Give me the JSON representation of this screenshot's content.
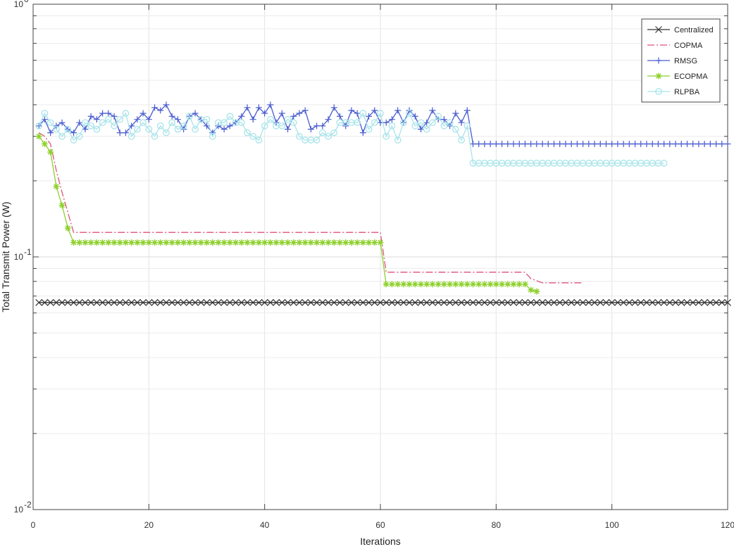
{
  "chart_data": {
    "type": "line",
    "title": "",
    "xlabel": "Iterations",
    "ylabel": "Total Transmit Power (W)",
    "xlim": [
      0,
      120
    ],
    "ylim": [
      0.01,
      1
    ],
    "yscale": "log",
    "grid": true,
    "legend_position": "top-right",
    "x_ticks": [
      "0",
      "20",
      "40",
      "60",
      "80",
      "100",
      "120"
    ],
    "y_ticks": [
      {
        "value": 1,
        "base": "10",
        "exp": "0"
      },
      {
        "value": 0.1,
        "base": "10",
        "exp": "-1"
      },
      {
        "value": 0.01,
        "base": "10",
        "exp": "-2"
      }
    ],
    "series": [
      {
        "name": "Centralized",
        "color": "#333333",
        "dash": "",
        "marker": "x",
        "x_start": 1,
        "x_end": 120,
        "values": [
          0.066
        ]
      },
      {
        "name": "COPMA",
        "color": "#e0507a",
        "dash": "10,3,2,3",
        "marker": "none",
        "points": [
          [
            1,
            0.31
          ],
          [
            2,
            0.3
          ],
          [
            3,
            0.28
          ],
          [
            4,
            0.22
          ],
          [
            5,
            0.18
          ],
          [
            6,
            0.15
          ],
          [
            7,
            0.125
          ],
          [
            60,
            0.125
          ],
          [
            61,
            0.087
          ],
          [
            85,
            0.087
          ],
          [
            86,
            0.082
          ],
          [
            88,
            0.079
          ],
          [
            95,
            0.079
          ]
        ]
      },
      {
        "name": "RMSG",
        "color": "#4a5cd0",
        "dash": "",
        "marker": "+",
        "points": [
          [
            1,
            0.33
          ],
          [
            2,
            0.35
          ],
          [
            3,
            0.31
          ],
          [
            4,
            0.33
          ],
          [
            5,
            0.34
          ],
          [
            6,
            0.32
          ],
          [
            7,
            0.31
          ],
          [
            8,
            0.34
          ],
          [
            9,
            0.32
          ],
          [
            10,
            0.36
          ],
          [
            11,
            0.35
          ],
          [
            12,
            0.37
          ],
          [
            13,
            0.37
          ],
          [
            14,
            0.36
          ],
          [
            15,
            0.31
          ],
          [
            16,
            0.31
          ],
          [
            17,
            0.33
          ],
          [
            18,
            0.35
          ],
          [
            19,
            0.37
          ],
          [
            20,
            0.35
          ],
          [
            21,
            0.39
          ],
          [
            22,
            0.38
          ],
          [
            23,
            0.4
          ],
          [
            24,
            0.36
          ],
          [
            25,
            0.35
          ],
          [
            26,
            0.32
          ],
          [
            27,
            0.36
          ],
          [
            28,
            0.37
          ],
          [
            29,
            0.35
          ],
          [
            30,
            0.33
          ],
          [
            31,
            0.31
          ],
          [
            32,
            0.33
          ],
          [
            33,
            0.32
          ],
          [
            34,
            0.33
          ],
          [
            35,
            0.34
          ],
          [
            36,
            0.36
          ],
          [
            37,
            0.39
          ],
          [
            38,
            0.35
          ],
          [
            39,
            0.39
          ],
          [
            40,
            0.37
          ],
          [
            41,
            0.4
          ],
          [
            42,
            0.34
          ],
          [
            43,
            0.37
          ],
          [
            44,
            0.32
          ],
          [
            45,
            0.36
          ],
          [
            46,
            0.37
          ],
          [
            47,
            0.38
          ],
          [
            48,
            0.32
          ],
          [
            49,
            0.33
          ],
          [
            50,
            0.33
          ],
          [
            51,
            0.35
          ],
          [
            52,
            0.39
          ],
          [
            53,
            0.36
          ],
          [
            54,
            0.33
          ],
          [
            55,
            0.38
          ],
          [
            56,
            0.37
          ],
          [
            57,
            0.31
          ],
          [
            58,
            0.36
          ],
          [
            59,
            0.38
          ],
          [
            60,
            0.34
          ],
          [
            61,
            0.34
          ],
          [
            62,
            0.35
          ],
          [
            63,
            0.38
          ],
          [
            64,
            0.34
          ],
          [
            65,
            0.38
          ],
          [
            66,
            0.36
          ],
          [
            67,
            0.32
          ],
          [
            68,
            0.34
          ],
          [
            69,
            0.38
          ],
          [
            70,
            0.35
          ],
          [
            71,
            0.35
          ],
          [
            72,
            0.33
          ],
          [
            73,
            0.37
          ],
          [
            74,
            0.34
          ],
          [
            75,
            0.38
          ],
          [
            76,
            0.28
          ],
          [
            120,
            0.28
          ]
        ],
        "hold_markers_from": 76
      },
      {
        "name": "ECOPMA",
        "color": "#8ed02c",
        "dash": "",
        "marker": "asterisk",
        "points": [
          [
            1,
            0.3
          ],
          [
            2,
            0.28
          ],
          [
            3,
            0.26
          ],
          [
            4,
            0.19
          ],
          [
            5,
            0.16
          ],
          [
            6,
            0.13
          ],
          [
            7,
            0.114
          ],
          [
            60,
            0.114
          ],
          [
            61,
            0.078
          ],
          [
            85,
            0.078
          ],
          [
            86,
            0.074
          ],
          [
            87,
            0.073
          ]
        ]
      },
      {
        "name": "RLPBA",
        "color": "#a8e4ea",
        "dash": "",
        "marker": "circle",
        "points": [
          [
            1,
            0.33
          ],
          [
            2,
            0.37
          ],
          [
            3,
            0.34
          ],
          [
            4,
            0.32
          ],
          [
            5,
            0.3
          ],
          [
            6,
            0.32
          ],
          [
            7,
            0.29
          ],
          [
            8,
            0.3
          ],
          [
            9,
            0.34
          ],
          [
            10,
            0.33
          ],
          [
            11,
            0.32
          ],
          [
            12,
            0.34
          ],
          [
            13,
            0.35
          ],
          [
            14,
            0.33
          ],
          [
            15,
            0.35
          ],
          [
            16,
            0.37
          ],
          [
            17,
            0.3
          ],
          [
            18,
            0.32
          ],
          [
            19,
            0.34
          ],
          [
            20,
            0.32
          ],
          [
            21,
            0.3
          ],
          [
            22,
            0.33
          ],
          [
            23,
            0.31
          ],
          [
            24,
            0.34
          ],
          [
            25,
            0.32
          ],
          [
            26,
            0.33
          ],
          [
            27,
            0.36
          ],
          [
            28,
            0.32
          ],
          [
            29,
            0.35
          ],
          [
            30,
            0.35
          ],
          [
            31,
            0.3
          ],
          [
            32,
            0.34
          ],
          [
            33,
            0.34
          ],
          [
            34,
            0.36
          ],
          [
            35,
            0.34
          ],
          [
            36,
            0.34
          ],
          [
            37,
            0.31
          ],
          [
            38,
            0.3
          ],
          [
            39,
            0.29
          ],
          [
            40,
            0.33
          ],
          [
            41,
            0.35
          ],
          [
            42,
            0.33
          ],
          [
            43,
            0.33
          ],
          [
            44,
            0.35
          ],
          [
            45,
            0.34
          ],
          [
            46,
            0.3
          ],
          [
            47,
            0.29
          ],
          [
            48,
            0.29
          ],
          [
            49,
            0.29
          ],
          [
            50,
            0.31
          ],
          [
            51,
            0.3
          ],
          [
            52,
            0.31
          ],
          [
            53,
            0.34
          ],
          [
            54,
            0.34
          ],
          [
            55,
            0.34
          ],
          [
            56,
            0.34
          ],
          [
            57,
            0.37
          ],
          [
            58,
            0.32
          ],
          [
            59,
            0.34
          ],
          [
            60,
            0.37
          ],
          [
            61,
            0.3
          ],
          [
            62,
            0.33
          ],
          [
            63,
            0.29
          ],
          [
            64,
            0.34
          ],
          [
            65,
            0.37
          ],
          [
            66,
            0.33
          ],
          [
            67,
            0.34
          ],
          [
            68,
            0.32
          ],
          [
            69,
            0.34
          ],
          [
            70,
            0.36
          ],
          [
            71,
            0.33
          ],
          [
            72,
            0.34
          ],
          [
            73,
            0.32
          ],
          [
            74,
            0.29
          ],
          [
            75,
            0.33
          ],
          [
            76,
            0.235
          ],
          [
            109,
            0.235
          ]
        ],
        "hold_markers_from": 76
      }
    ]
  }
}
